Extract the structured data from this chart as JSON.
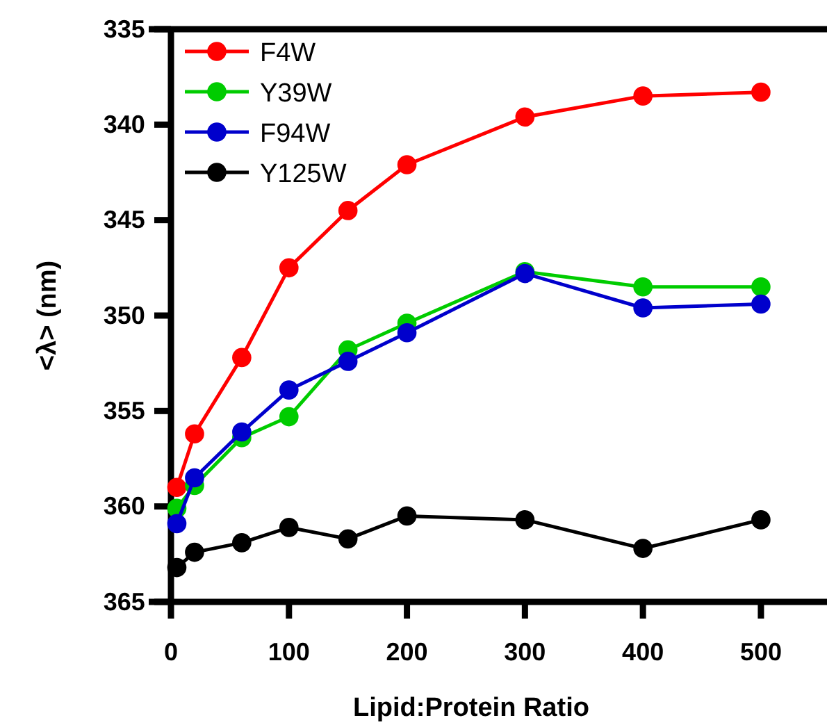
{
  "chart_data": {
    "type": "line",
    "xlabel": "Lipid:Protein Ratio",
    "ylabel": "<λ> (nm)",
    "x": [
      5,
      20,
      60,
      100,
      150,
      200,
      300,
      400,
      500
    ],
    "xlim": [
      0,
      556
    ],
    "xticks": [
      0,
      100,
      200,
      300,
      400,
      500
    ],
    "ylim": [
      365,
      335
    ],
    "yticks": [
      335,
      340,
      345,
      350,
      355,
      360,
      365
    ],
    "marker": "circle",
    "legend": "top left",
    "grid": false,
    "series": [
      {
        "name": "F4W",
        "color": "#ff0000",
        "values": [
          359.0,
          356.2,
          352.2,
          347.5,
          344.5,
          342.1,
          339.6,
          338.5,
          338.3
        ]
      },
      {
        "name": "Y39W",
        "color": "#00cc00",
        "values": [
          360.1,
          358.9,
          356.4,
          355.3,
          351.8,
          350.4,
          347.7,
          348.5,
          348.5
        ]
      },
      {
        "name": "F94W",
        "color": "#0000cc",
        "values": [
          360.9,
          358.5,
          356.1,
          353.9,
          352.4,
          350.9,
          347.8,
          349.6,
          349.4
        ]
      },
      {
        "name": "Y125W",
        "color": "#000000",
        "values": [
          363.2,
          362.4,
          361.9,
          361.1,
          361.7,
          360.5,
          360.7,
          362.2,
          360.7
        ]
      }
    ]
  }
}
